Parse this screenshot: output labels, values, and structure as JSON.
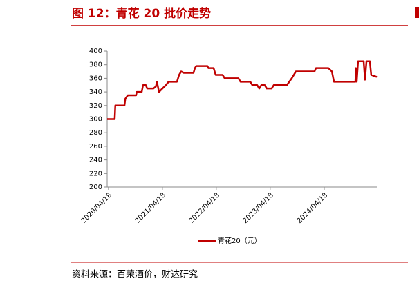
{
  "title": "图 12：青花 20 批价走势",
  "source": "资料来源：百荣酒价，财达研究",
  "chart_data": {
    "type": "line",
    "x": [
      "2020/04/09",
      "2020/05/30",
      "2020/06/03",
      "2020/08/04",
      "2020/08/10",
      "2020/08/27",
      "2020/10/22",
      "2020/10/26",
      "2020/11/29",
      "2020/12/08",
      "2020/12/27",
      "2021/01/05",
      "2021/02/16",
      "2021/03/05",
      "2021/03/12",
      "2021/03/26",
      "2021/04/18",
      "2021/05/12",
      "2021/05/30",
      "2021/07/26",
      "2021/08/09",
      "2021/08/23",
      "2021/09/10",
      "2021/11/15",
      "2021/11/24",
      "2021/12/03",
      "2022/02/17",
      "2022/02/24",
      "2022/03/31",
      "2022/04/14",
      "2022/05/31",
      "2022/06/14",
      "2022/09/15",
      "2022/09/29",
      "2022/12/04",
      "2022/12/18",
      "2023/01/20",
      "2023/02/03",
      "2023/02/17",
      "2023/03/12",
      "2023/03/26",
      "2023/04/28",
      "2023/05/12",
      "2023/08/09",
      "2023/09/11",
      "2023/10/09",
      "2024/02/12",
      "2024/02/22",
      "2024/05/16",
      "2024/06/09",
      "2024/06/23",
      "2024/11/15",
      "2024/11/19",
      "2024/11/24",
      "2024/12/03",
      "2025/01/10",
      "2025/01/19",
      "2025/01/29",
      "2025/02/21",
      "2025/03/02",
      "2025/04/09"
    ],
    "series": [
      {
        "name": "青花20（元）",
        "color": "#c00000",
        "values": [
          300,
          300,
          320,
          320,
          330,
          335,
          335,
          340,
          340,
          350,
          350,
          345,
          345,
          348,
          355,
          340,
          345,
          350,
          355,
          355,
          365,
          370,
          368,
          368,
          375,
          378,
          378,
          375,
          375,
          365,
          365,
          360,
          360,
          355,
          355,
          350,
          350,
          345,
          350,
          350,
          345,
          345,
          350,
          350,
          360,
          370,
          370,
          375,
          375,
          370,
          355,
          355,
          375,
          355,
          385,
          385,
          358,
          385,
          385,
          365,
          362
        ]
      }
    ],
    "xlim": [
      "2020/04/09",
      "2025/04/09"
    ],
    "xticks": [
      "2020/04/18",
      "2021/04/18",
      "2022/04/18",
      "2023/04/18",
      "2024/04/18"
    ],
    "ylim": [
      200,
      400
    ],
    "yticks": [
      200,
      220,
      240,
      260,
      280,
      300,
      320,
      340,
      360,
      380,
      400
    ],
    "legend": "bottom"
  }
}
